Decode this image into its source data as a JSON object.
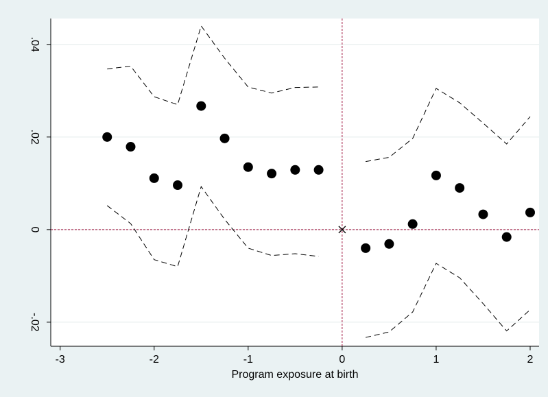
{
  "chart_data": {
    "type": "scatter",
    "x_label": "Program exposure at birth",
    "x": [
      -2.5,
      -2.25,
      -2,
      -1.75,
      -1.5,
      -1.25,
      -1,
      -0.75,
      -0.5,
      -0.25,
      null,
      0.25,
      0.5,
      0.75,
      1,
      1.25,
      1.5,
      1.75,
      2
    ],
    "series": [
      {
        "style": "dots",
        "color": "#000000",
        "values": [
          0.02,
          0.0179,
          0.0111,
          0.0096,
          0.0267,
          0.0197,
          0.0135,
          0.0121,
          0.0129,
          0.0129,
          null,
          -0.004,
          -0.0031,
          0.0012,
          0.0117,
          0.009,
          0.0033,
          -0.0016,
          0.0037
        ]
      },
      {
        "style": "dashed",
        "color": "#000000",
        "values": [
          0.0347,
          0.0353,
          0.0287,
          0.027,
          0.044,
          0.037,
          0.0308,
          0.0295,
          0.0307,
          0.0308,
          null,
          0.0147,
          0.0156,
          0.0197,
          0.0305,
          0.0274,
          0.023,
          0.0185,
          0.0244
        ]
      },
      {
        "style": "dashed",
        "color": "#000000",
        "values": [
          0.0052,
          0.0013,
          -0.0065,
          -0.008,
          0.0093,
          0.0022,
          -0.004,
          -0.0056,
          -0.0052,
          -0.0058,
          null,
          -0.0233,
          -0.0221,
          -0.0178,
          -0.0073,
          -0.0104,
          -0.016,
          -0.0219,
          -0.0173
        ]
      }
    ],
    "xline": 0,
    "yline": 0,
    "reference_color": "#a0153e",
    "xlim": [
      -3.1,
      2.095
    ],
    "ylim": [
      -0.0252,
      0.0456
    ],
    "xticks": [
      -3,
      -2,
      -1,
      0,
      1,
      2
    ],
    "yticks": [
      {
        "value": -0.02,
        "label": "-.02"
      },
      0,
      {
        "value": 0.02,
        "label": ".02"
      },
      {
        "value": 0.04,
        "label": ".04"
      }
    ],
    "grid": true
  }
}
